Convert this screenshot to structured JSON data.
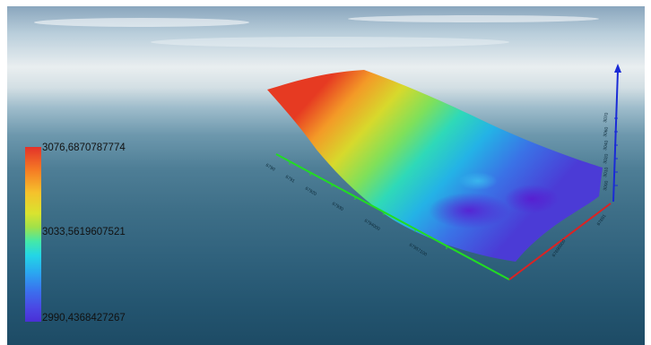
{
  "legend": {
    "max_label": "3076,6870787774",
    "mid_label": "3033,5619607521",
    "min_label": "2990,4368427267",
    "colors": [
      "#e3322a",
      "#f5c12c",
      "#44e8a8",
      "#2aa7f0",
      "#4a2fd6"
    ]
  },
  "axes": {
    "x_color": "#22dd22",
    "y_color": "#dd2222",
    "z_color": "#1a2bd6"
  }
}
